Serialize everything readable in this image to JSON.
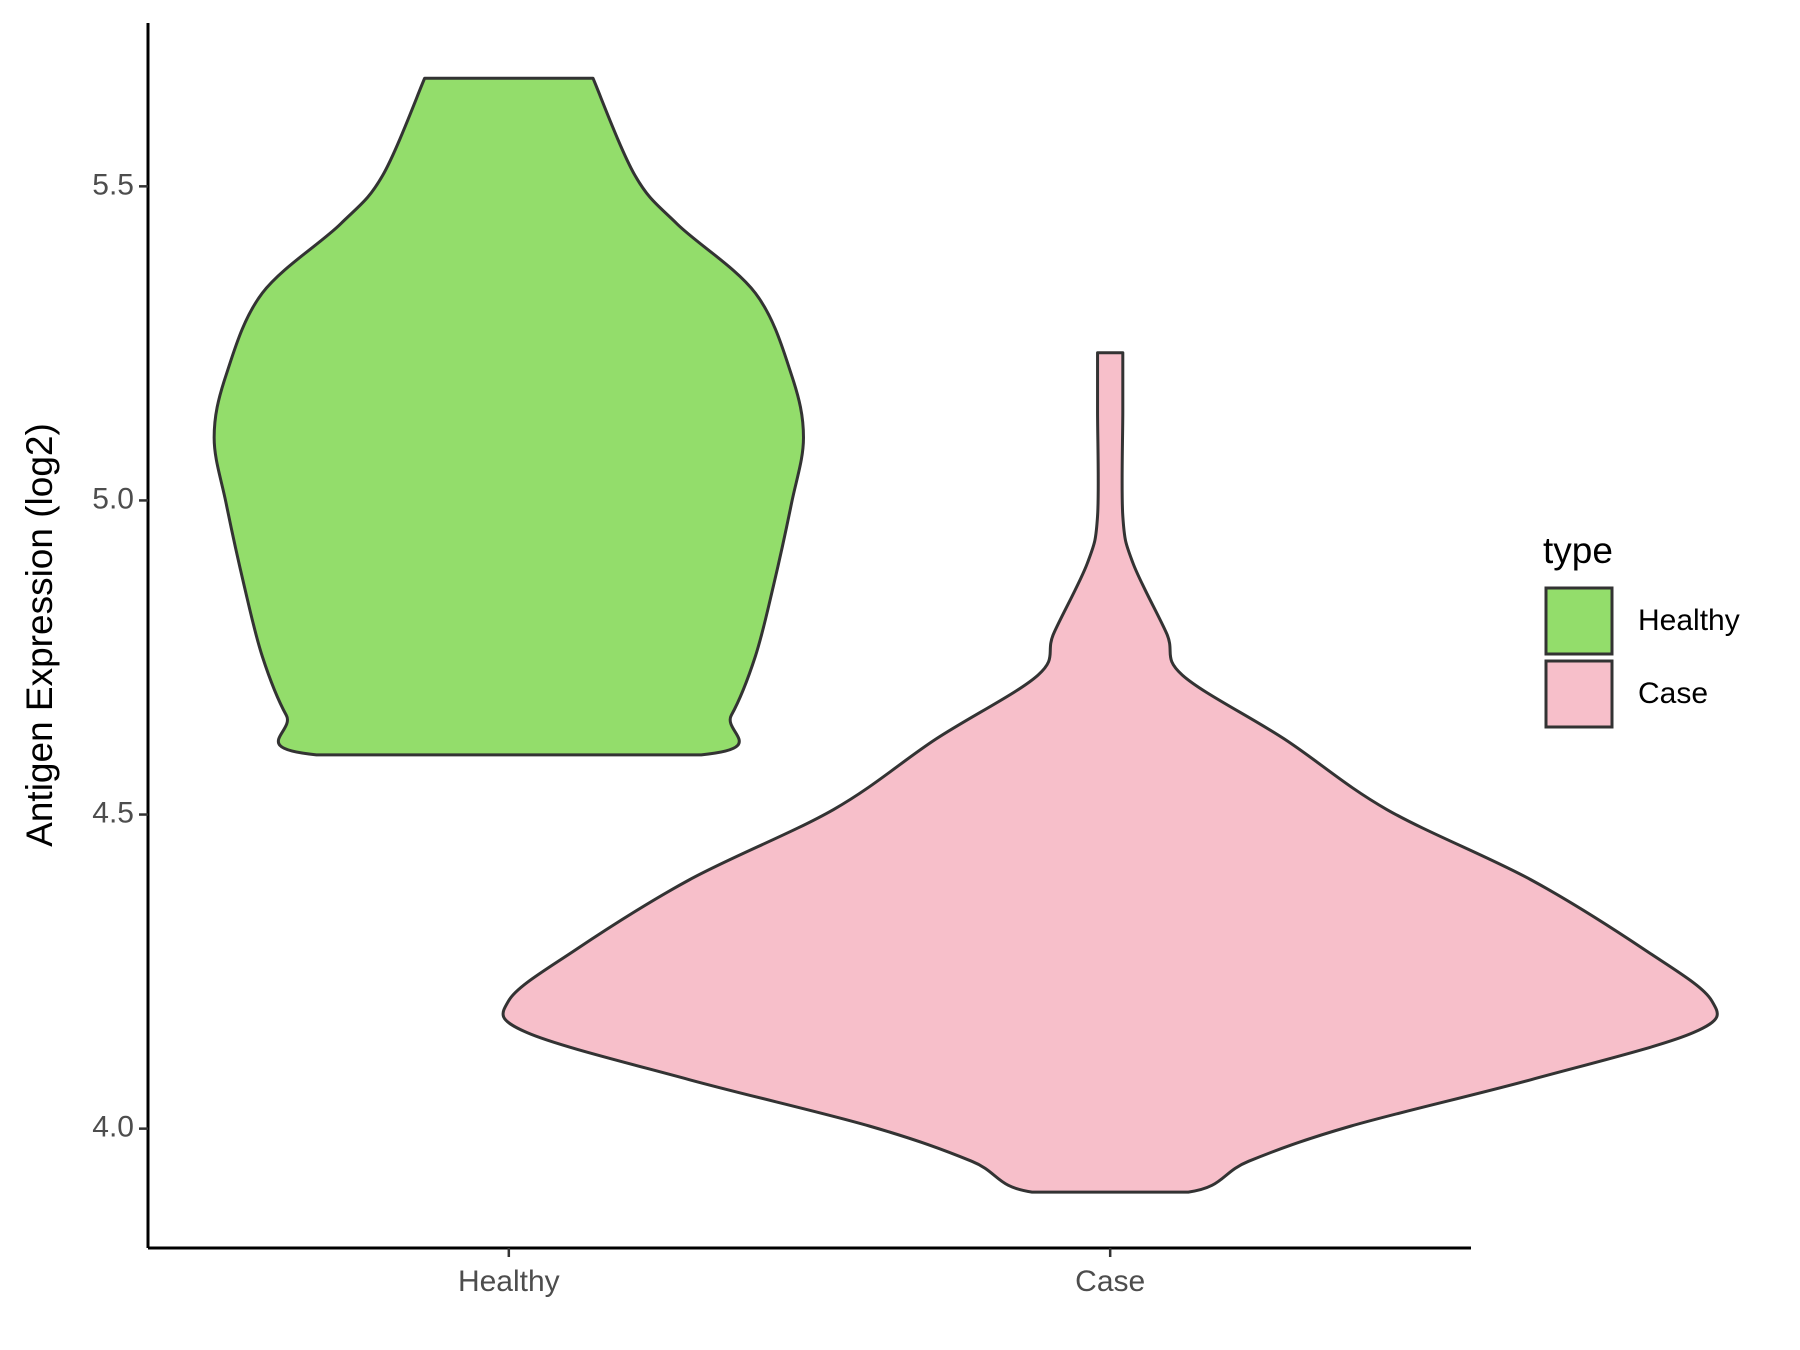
{
  "chart_data": {
    "type": "violin",
    "y_label": "Antigen Expression (log2)",
    "categories": [
      "Healthy",
      "Case"
    ],
    "legend_title": "type",
    "legend_position": "right",
    "series": [
      {
        "name": "Healthy",
        "color": "#93dd6b",
        "y": [
          5.672,
          5.517,
          5.44,
          5.33,
          5.2,
          5.1,
          4.995,
          4.864,
          4.752,
          4.658,
          4.595
        ],
        "density": [
          0.14,
          0.21,
          0.28,
          0.41,
          0.47,
          0.49,
          0.47,
          0.44,
          0.41,
          0.37,
          0.32
        ]
      },
      {
        "name": "Case",
        "color": "#f7bfca",
        "y": [
          5.235,
          5.143,
          4.975,
          4.9,
          4.788,
          4.722,
          4.62,
          4.508,
          4.396,
          4.284,
          4.204,
          4.153,
          4.078,
          4.004,
          3.948,
          3.899
        ],
        "density": [
          0.021,
          0.021,
          0.021,
          0.038,
          0.094,
          0.12,
          0.29,
          0.46,
          0.7,
          0.89,
          1,
          0.97,
          0.7,
          0.4,
          0.23,
          0.13
        ]
      }
    ],
    "ylim": [
      3.81,
      5.76
    ],
    "yticks": [
      {
        "value": 4,
        "label": "4.0"
      },
      4.5,
      {
        "value": 5,
        "label": "5.0"
      },
      5.5
    ],
    "grid": false
  }
}
